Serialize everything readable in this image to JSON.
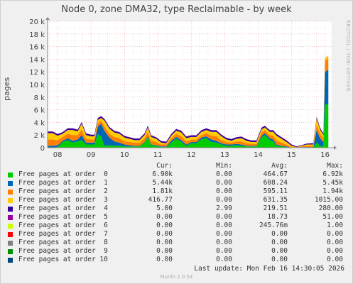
{
  "title": "Node 0, zone DMA32, type Reclaimable - by week",
  "side_credit": "RRDTOOL / TOBI OETIKER",
  "ylabel": "pages",
  "legend_headers": {
    "cur": "Cur:",
    "min": "Min:",
    "avg": "Avg:",
    "max": "Max:"
  },
  "legend": [
    {
      "name": "Free pages at order  0",
      "color": "#00cc00",
      "cur": "6.90k",
      "min": "0.00",
      "avg": "464.67",
      "max": "6.92k"
    },
    {
      "name": "Free pages at order  1",
      "color": "#0066b3",
      "cur": "5.44k",
      "min": "0.00",
      "avg": "608.24",
      "max": "5.45k"
    },
    {
      "name": "Free pages at order  2",
      "color": "#ff8000",
      "cur": "1.81k",
      "min": "0.00",
      "avg": "595.11",
      "max": "1.94k"
    },
    {
      "name": "Free pages at order  3",
      "color": "#ffcc00",
      "cur": "416.77",
      "min": "0.00",
      "avg": "631.35",
      "max": "1015.00"
    },
    {
      "name": "Free pages at order  4",
      "color": "#330099",
      "cur": "5.00",
      "min": "2.99",
      "avg": "219.51",
      "max": "280.00"
    },
    {
      "name": "Free pages at order  5",
      "color": "#990099",
      "cur": "0.00",
      "min": "0.00",
      "avg": "18.73",
      "max": "51.00"
    },
    {
      "name": "Free pages at order  6",
      "color": "#ccff00",
      "cur": "0.00",
      "min": "0.00",
      "avg": "245.76m",
      "max": "1.00"
    },
    {
      "name": "Free pages at order  7",
      "color": "#ff0000",
      "cur": "0.00",
      "min": "0.00",
      "avg": "0.00",
      "max": "0.00"
    },
    {
      "name": "Free pages at order  8",
      "color": "#808080",
      "cur": "0.00",
      "min": "0.00",
      "avg": "0.00",
      "max": "0.00"
    },
    {
      "name": "Free pages at order  9",
      "color": "#008f00",
      "cur": "0.00",
      "min": "0.00",
      "avg": "0.00",
      "max": "0.00"
    },
    {
      "name": "Free pages at order 10",
      "color": "#00487d",
      "cur": "0.00",
      "min": "0.00",
      "avg": "0.00",
      "max": "0.00"
    }
  ],
  "last_update": "Last update: Mon Feb 16 14:30:05 2026",
  "munin_version": "Munin 2.0.54",
  "chart_data": {
    "type": "area",
    "stacked": true,
    "title": "Node 0, zone DMA32, type Reclaimable - by week",
    "ylabel": "pages",
    "ylim": [
      0,
      20000
    ],
    "y_ticks": [
      0,
      2000,
      4000,
      6000,
      8000,
      10000,
      12000,
      14000,
      16000,
      18000,
      20000
    ],
    "y_tick_labels": [
      "0",
      "2 k",
      "4 k",
      "6 k",
      "8 k",
      "10 k",
      "12 k",
      "14 k",
      "16 k",
      "18 k",
      "20 k"
    ],
    "xlim": [
      7.7,
      16.2
    ],
    "x_ticks": [
      8,
      9,
      10,
      11,
      12,
      13,
      14,
      15,
      16
    ],
    "x_tick_labels": [
      "08",
      "09",
      "10",
      "11",
      "12",
      "13",
      "14",
      "15",
      "16"
    ],
    "grid": true,
    "x": [
      7.7,
      7.85,
      8.0,
      8.15,
      8.3,
      8.45,
      8.6,
      8.72,
      8.85,
      9.0,
      9.1,
      9.2,
      9.3,
      9.4,
      9.55,
      9.7,
      9.85,
      10.0,
      10.15,
      10.3,
      10.45,
      10.6,
      10.7,
      10.8,
      10.95,
      11.1,
      11.25,
      11.4,
      11.55,
      11.7,
      11.85,
      12.0,
      12.15,
      12.3,
      12.45,
      12.6,
      12.75,
      12.9,
      13.05,
      13.2,
      13.35,
      13.5,
      13.65,
      13.8,
      13.95,
      14.1,
      14.2,
      14.35,
      14.45,
      14.55,
      14.7,
      14.85,
      15.0,
      15.15,
      15.3,
      15.45,
      15.65,
      15.75,
      15.85,
      15.95,
      16.0,
      16.1
    ],
    "series": [
      {
        "name": "Free pages at order  0",
        "color": "#00cc00",
        "values": [
          0,
          0,
          100,
          900,
          1200,
          800,
          1000,
          1200,
          500,
          500,
          500,
          2100,
          1800,
          300,
          400,
          300,
          300,
          200,
          200,
          200,
          200,
          800,
          1600,
          400,
          300,
          100,
          100,
          800,
          1400,
          900,
          300,
          700,
          700,
          1300,
          1500,
          900,
          800,
          500,
          300,
          300,
          400,
          300,
          200,
          200,
          200,
          1600,
          2000,
          1200,
          1000,
          300,
          200,
          100,
          0,
          0,
          0,
          0,
          0,
          800,
          300,
          200,
          6800,
          6900
        ]
      },
      {
        "name": "Free pages at order  1",
        "color": "#0066b3",
        "values": [
          300,
          300,
          300,
          200,
          300,
          300,
          300,
          800,
          300,
          300,
          300,
          1200,
          2000,
          2400,
          1200,
          700,
          500,
          300,
          200,
          100,
          100,
          100,
          200,
          100,
          100,
          100,
          100,
          300,
          300,
          300,
          200,
          200,
          200,
          300,
          300,
          400,
          300,
          200,
          200,
          200,
          200,
          200,
          100,
          100,
          100,
          300,
          300,
          300,
          300,
          200,
          100,
          100,
          0,
          0,
          100,
          100,
          100,
          2000,
          1200,
          700,
          5200,
          5440
        ]
      },
      {
        "name": "Free pages at order  2",
        "color": "#ff8000",
        "values": [
          1000,
          1000,
          800,
          600,
          700,
          900,
          700,
          900,
          600,
          500,
          500,
          600,
          500,
          700,
          600,
          700,
          700,
          500,
          500,
          500,
          500,
          600,
          700,
          600,
          500,
          300,
          300,
          400,
          500,
          600,
          500,
          400,
          400,
          400,
          500,
          600,
          700,
          500,
          400,
          300,
          400,
          500,
          400,
          300,
          300,
          500,
          500,
          500,
          600,
          700,
          500,
          300,
          100,
          50,
          100,
          200,
          200,
          900,
          700,
          600,
          1800,
          1810
        ]
      },
      {
        "name": "Free pages at order  3",
        "color": "#ffcc00",
        "values": [
          1000,
          1000,
          700,
          500,
          600,
          800,
          600,
          900,
          600,
          500,
          500,
          500,
          400,
          900,
          800,
          700,
          700,
          600,
          500,
          400,
          400,
          500,
          700,
          600,
          500,
          300,
          200,
          400,
          500,
          600,
          500,
          400,
          400,
          500,
          500,
          600,
          700,
          600,
          400,
          300,
          400,
          500,
          400,
          300,
          300,
          500,
          400,
          500,
          600,
          700,
          600,
          400,
          200,
          50,
          100,
          200,
          200,
          900,
          700,
          500,
          400,
          417
        ]
      },
      {
        "name": "Free pages at order  4",
        "color": "#330099",
        "values": [
          250,
          250,
          250,
          250,
          250,
          250,
          250,
          250,
          250,
          250,
          250,
          260,
          260,
          260,
          260,
          250,
          250,
          250,
          250,
          250,
          250,
          250,
          250,
          250,
          240,
          240,
          240,
          250,
          250,
          250,
          250,
          250,
          250,
          250,
          260,
          260,
          260,
          250,
          250,
          250,
          250,
          250,
          240,
          240,
          240,
          250,
          250,
          250,
          260,
          260,
          250,
          250,
          200,
          100,
          100,
          150,
          200,
          250,
          250,
          250,
          10,
          5
        ]
      },
      {
        "name": "Free pages at order  5",
        "color": "#990099",
        "values": [
          20,
          20,
          20,
          20,
          20,
          20,
          20,
          20,
          20,
          20,
          20,
          40,
          40,
          20,
          20,
          20,
          20,
          20,
          20,
          20,
          20,
          20,
          30,
          20,
          20,
          20,
          20,
          20,
          30,
          30,
          20,
          20,
          20,
          20,
          20,
          20,
          20,
          20,
          20,
          20,
          20,
          20,
          20,
          20,
          20,
          20,
          20,
          20,
          20,
          20,
          20,
          20,
          10,
          10,
          10,
          10,
          10,
          50,
          30,
          20,
          0,
          0
        ]
      },
      {
        "name": "Free pages at order  6",
        "color": "#ccff00",
        "values": [
          0,
          0,
          0,
          0,
          0,
          0,
          0,
          0,
          0,
          0,
          0,
          0,
          0,
          0,
          0,
          0,
          0,
          0,
          0,
          0,
          0,
          0,
          0,
          0,
          0,
          0,
          0,
          0,
          0,
          0,
          0,
          0,
          0,
          0,
          0,
          0,
          0,
          0,
          0,
          0,
          0,
          0,
          0,
          0,
          0,
          0,
          0,
          0,
          0,
          0,
          0,
          0,
          0,
          0,
          0,
          0,
          0,
          0,
          0,
          0,
          0,
          0
        ]
      },
      {
        "name": "Free pages at order  7",
        "color": "#ff0000",
        "values": [
          0,
          0,
          0,
          0,
          0,
          0,
          0,
          0,
          0,
          0,
          0,
          0,
          0,
          0,
          0,
          0,
          0,
          0,
          0,
          0,
          0,
          0,
          0,
          0,
          0,
          0,
          0,
          0,
          0,
          0,
          0,
          0,
          0,
          0,
          0,
          0,
          0,
          0,
          0,
          0,
          0,
          0,
          0,
          0,
          0,
          0,
          0,
          0,
          0,
          0,
          0,
          0,
          0,
          0,
          0,
          0,
          0,
          0,
          0,
          0,
          0,
          0
        ]
      },
      {
        "name": "Free pages at order  8",
        "color": "#808080",
        "values": [
          0,
          0,
          0,
          0,
          0,
          0,
          0,
          0,
          0,
          0,
          0,
          0,
          0,
          0,
          0,
          0,
          0,
          0,
          0,
          0,
          0,
          0,
          0,
          0,
          0,
          0,
          0,
          0,
          0,
          0,
          0,
          0,
          0,
          0,
          0,
          0,
          0,
          0,
          0,
          0,
          0,
          0,
          0,
          0,
          0,
          0,
          0,
          0,
          0,
          0,
          0,
          0,
          0,
          0,
          0,
          0,
          0,
          0,
          0,
          0,
          0,
          0
        ]
      },
      {
        "name": "Free pages at order  9",
        "color": "#008f00",
        "values": [
          0,
          0,
          0,
          0,
          0,
          0,
          0,
          0,
          0,
          0,
          0,
          0,
          0,
          0,
          0,
          0,
          0,
          0,
          0,
          0,
          0,
          0,
          0,
          0,
          0,
          0,
          0,
          0,
          0,
          0,
          0,
          0,
          0,
          0,
          0,
          0,
          0,
          0,
          0,
          0,
          0,
          0,
          0,
          0,
          0,
          0,
          0,
          0,
          0,
          0,
          0,
          0,
          0,
          0,
          0,
          0,
          0,
          0,
          0,
          0,
          0,
          0
        ]
      },
      {
        "name": "Free pages at order 10",
        "color": "#00487d",
        "values": [
          0,
          0,
          0,
          0,
          0,
          0,
          0,
          0,
          0,
          0,
          0,
          0,
          0,
          0,
          0,
          0,
          0,
          0,
          0,
          0,
          0,
          0,
          0,
          0,
          0,
          0,
          0,
          0,
          0,
          0,
          0,
          0,
          0,
          0,
          0,
          0,
          0,
          0,
          0,
          0,
          0,
          0,
          0,
          0,
          0,
          0,
          0,
          0,
          0,
          0,
          0,
          0,
          0,
          0,
          0,
          0,
          0,
          0,
          0,
          0,
          0,
          0
        ]
      }
    ]
  }
}
